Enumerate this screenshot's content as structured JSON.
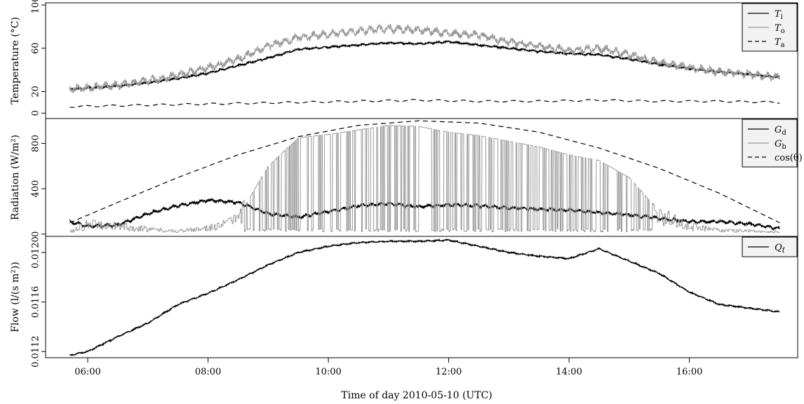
{
  "chart_data": {
    "type": "line",
    "xlabel": "Time of day 2010-05-10 (UTC)",
    "x_ticks": [
      "06:00",
      "08:00",
      "10:00",
      "12:00",
      "14:00",
      "16:00"
    ],
    "x_range_hours": [
      5.3,
      17.8
    ],
    "panels": [
      {
        "ylabel": "Temperature (°C)",
        "ylim": [
          -5,
          102
        ],
        "yticks": [
          "0",
          "20",
          "60",
          "100"
        ],
        "legend_position": "top-right",
        "series": [
          {
            "name": "T",
            "sub": "i",
            "style": "solid",
            "color": "#000000",
            "points": [
              [
                5.7,
                22
              ],
              [
                6.5,
                25
              ],
              [
                7,
                28
              ],
              [
                7.5,
                32
              ],
              [
                8,
                37
              ],
              [
                8.5,
                44
              ],
              [
                9,
                51
              ],
              [
                9.5,
                59
              ],
              [
                10,
                61
              ],
              [
                10.5,
                63
              ],
              [
                11,
                65
              ],
              [
                11.5,
                64
              ],
              [
                12,
                66
              ],
              [
                12.5,
                63
              ],
              [
                13,
                60
              ],
              [
                13.5,
                57
              ],
              [
                14,
                55
              ],
              [
                14.5,
                54
              ],
              [
                15,
                50
              ],
              [
                15.5,
                45
              ],
              [
                16,
                41
              ],
              [
                16.5,
                38
              ],
              [
                17,
                36
              ],
              [
                17.5,
                33
              ]
            ]
          },
          {
            "name": "T",
            "sub": "o",
            "style": "solid",
            "color": "#999999",
            "points": [
              [
                5.7,
                22
              ],
              [
                6.5,
                26
              ],
              [
                7,
                30
              ],
              [
                7.5,
                35
              ],
              [
                8,
                42
              ],
              [
                8.5,
                50
              ],
              [
                9,
                62
              ],
              [
                9.5,
                70
              ],
              [
                10,
                73
              ],
              [
                10.5,
                76
              ],
              [
                11,
                78
              ],
              [
                11.5,
                77
              ],
              [
                12,
                74
              ],
              [
                12.5,
                72
              ],
              [
                13,
                66
              ],
              [
                13.5,
                62
              ],
              [
                14,
                58
              ],
              [
                14.5,
                60
              ],
              [
                15,
                54
              ],
              [
                15.5,
                47
              ],
              [
                16,
                42
              ],
              [
                16.5,
                38
              ],
              [
                17,
                36
              ],
              [
                17.5,
                33
              ]
            ]
          },
          {
            "name": "T",
            "sub": "a",
            "style": "dashed",
            "color": "#000000",
            "points": [
              [
                5.7,
                6
              ],
              [
                6.5,
                7
              ],
              [
                7.5,
                8
              ],
              [
                8.5,
                9
              ],
              [
                9.5,
                10
              ],
              [
                10.5,
                11
              ],
              [
                11.5,
                12
              ],
              [
                12.5,
                11
              ],
              [
                13.5,
                11
              ],
              [
                14.5,
                12
              ],
              [
                15.5,
                11
              ],
              [
                16.5,
                11
              ],
              [
                17.5,
                10
              ]
            ]
          }
        ]
      },
      {
        "ylabel": "Radiation (W/m²)",
        "ylim": [
          -20,
          1020
        ],
        "yticks": [
          "0",
          "400",
          "800"
        ],
        "legend_position": "top-right",
        "series": [
          {
            "name": "G",
            "sub": "d",
            "style": "solid",
            "color": "#000000",
            "points": [
              [
                5.7,
                110
              ],
              [
                6,
                70
              ],
              [
                6.5,
                80
              ],
              [
                7,
                180
              ],
              [
                7.5,
                250
              ],
              [
                8,
                300
              ],
              [
                8.5,
                280
              ],
              [
                9,
                180
              ],
              [
                9.5,
                150
              ],
              [
                10,
                200
              ],
              [
                10.5,
                250
              ],
              [
                11,
                270
              ],
              [
                11.5,
                240
              ],
              [
                12,
                260
              ],
              [
                12.5,
                250
              ],
              [
                13,
                230
              ],
              [
                13.5,
                220
              ],
              [
                14,
                210
              ],
              [
                14.5,
                190
              ],
              [
                15,
                170
              ],
              [
                15.5,
                140
              ],
              [
                16,
                110
              ],
              [
                16.5,
                110
              ],
              [
                17,
                90
              ],
              [
                17.5,
                50
              ]
            ]
          },
          {
            "name": "G",
            "sub": "b",
            "style": "solid",
            "color": "#999999",
            "points": [
              [
                5.7,
                20
              ],
              [
                6,
                100
              ],
              [
                6.5,
                80
              ],
              [
                7,
                50
              ],
              [
                7.5,
                30
              ],
              [
                8,
                60
              ],
              [
                8.5,
                150
              ],
              [
                9,
                600
              ],
              [
                9.5,
                850
              ],
              [
                10,
                880
              ],
              [
                10.5,
                920
              ],
              [
                11,
                960
              ],
              [
                11.5,
                950
              ],
              [
                12,
                900
              ],
              [
                12.5,
                870
              ],
              [
                13,
                820
              ],
              [
                13.5,
                770
              ],
              [
                14,
                700
              ],
              [
                14.5,
                650
              ],
              [
                15,
                500
              ],
              [
                15.5,
                200
              ],
              [
                16,
                80
              ],
              [
                16.5,
                40
              ],
              [
                17,
                30
              ],
              [
                17.5,
                20
              ]
            ]
          },
          {
            "name": "cos(θ)",
            "sub": "",
            "style": "dashed",
            "color": "#000000",
            "points": [
              [
                5.7,
                100
              ],
              [
                6.5,
                280
              ],
              [
                7.5,
                500
              ],
              [
                8.5,
                700
              ],
              [
                9.5,
                860
              ],
              [
                10.5,
                960
              ],
              [
                11.5,
                1000
              ],
              [
                12.5,
                980
              ],
              [
                13.5,
                900
              ],
              [
                14.5,
                760
              ],
              [
                15.5,
                580
              ],
              [
                16.5,
                360
              ],
              [
                17.5,
                100
              ]
            ]
          }
        ]
      },
      {
        "ylabel": "Flow (l/(s m²))",
        "ylim": [
          0.01115,
          0.01213
        ],
        "yticks": [
          "0.0112",
          "0.0116",
          "0.0120"
        ],
        "legend_position": "top-right",
        "series": [
          {
            "name": "Q",
            "sub": "f",
            "style": "solid",
            "color": "#000000",
            "points": [
              [
                5.7,
                0.01117
              ],
              [
                6,
                0.0112
              ],
              [
                6.5,
                0.01132
              ],
              [
                7,
                0.01143
              ],
              [
                7.5,
                0.01158
              ],
              [
                8,
                0.01167
              ],
              [
                8.5,
                0.01178
              ],
              [
                9,
                0.0119
              ],
              [
                9.5,
                0.012
              ],
              [
                10,
                0.01205
              ],
              [
                10.5,
                0.01208
              ],
              [
                11,
                0.01209
              ],
              [
                11.5,
                0.01209
              ],
              [
                12,
                0.0121
              ],
              [
                12.5,
                0.01205
              ],
              [
                13,
                0.012
              ],
              [
                13.5,
                0.01197
              ],
              [
                14,
                0.01195
              ],
              [
                14.5,
                0.01203
              ],
              [
                15,
                0.01193
              ],
              [
                15.5,
                0.01183
              ],
              [
                16,
                0.01168
              ],
              [
                16.5,
                0.01158
              ],
              [
                17,
                0.01155
              ],
              [
                17.5,
                0.01152
              ]
            ]
          }
        ]
      }
    ]
  }
}
